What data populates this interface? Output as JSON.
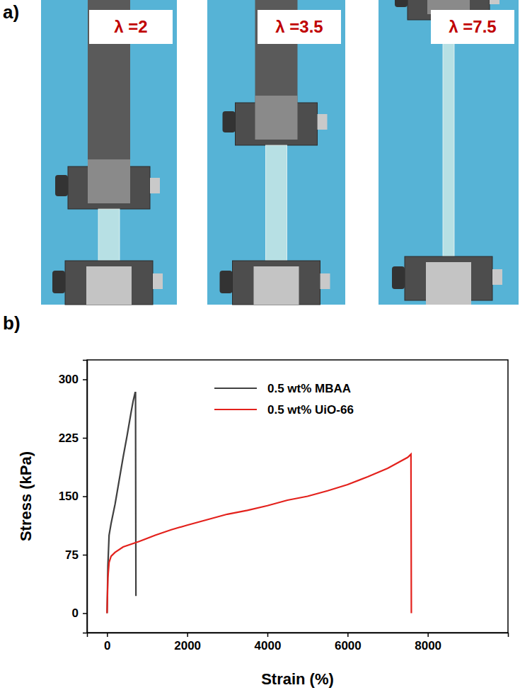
{
  "figure": {
    "panel_labels": [
      "a)",
      "b)"
    ],
    "photos": [
      {
        "label": "λ =2"
      },
      {
        "label": "λ =3.5"
      },
      {
        "label": "λ =7.5"
      }
    ]
  },
  "chart_data": {
    "type": "line",
    "x_label": "Strain (%)",
    "y_label": "Stress (kPa)",
    "xlim": [
      -500,
      10000
    ],
    "xticks": [
      0,
      2000,
      4000,
      6000,
      8000
    ],
    "ylim": [
      -25,
      325
    ],
    "yticks": [
      0,
      75,
      150,
      225,
      300
    ],
    "legend": "upper right",
    "series": [
      {
        "name": "0.5 wt% MBAA",
        "color": "#404040",
        "line_style": "solid",
        "x": [
          0,
          20,
          50,
          100,
          200,
          300,
          400,
          500,
          600,
          650,
          700,
          710,
          720
        ],
        "values": [
          0,
          60,
          100,
          115,
          140,
          170,
          200,
          228,
          258,
          272,
          283,
          283,
          22
        ]
      },
      {
        "name": "0.5 wt% UiO-66",
        "color": "#e3211c",
        "line_style": "solid",
        "x": [
          0,
          20,
          50,
          100,
          200,
          400,
          800,
          1200,
          1600,
          2000,
          2500,
          3000,
          3500,
          4000,
          4500,
          5000,
          5500,
          6000,
          6500,
          7000,
          7500,
          7580,
          7590
        ],
        "values": [
          0,
          45,
          65,
          73,
          78,
          85,
          92,
          100,
          107,
          113,
          120,
          127,
          132,
          138,
          145,
          150,
          157,
          165,
          175,
          186,
          200,
          204,
          0
        ]
      }
    ]
  }
}
